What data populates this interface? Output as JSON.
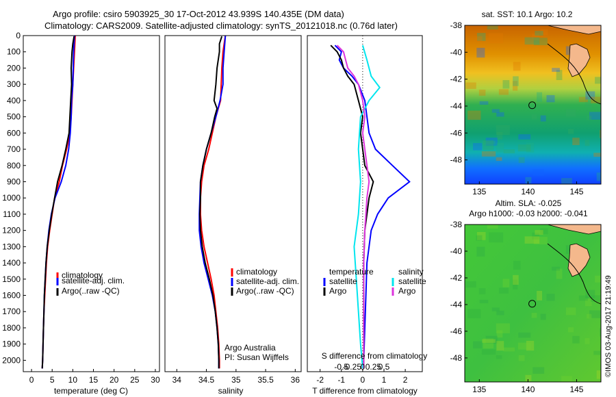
{
  "header": {
    "line1": "Argo profile: csiro 5903925_30 17-Oct-2012 43.939S 140.435E (DM data)",
    "line2": "Climatology: CARS2009. Satellite-adjusted climatology: synTS_20121018.nc (0.76d later)"
  },
  "colors": {
    "climatology": "#ff0000",
    "satellite": "#0000ff",
    "argo": "#000000",
    "sal_satellite": "#00e5ee",
    "sal_argo": "#dd33dd"
  },
  "chart_data": [
    {
      "type": "line",
      "xlabel": "temperature (deg C)",
      "ylabel": "",
      "xlim": [
        -2,
        31
      ],
      "ylim": [
        2070,
        0
      ],
      "xticks": [
        0,
        5,
        10,
        15,
        20,
        25,
        30
      ],
      "yticks": [
        0,
        100,
        200,
        300,
        400,
        500,
        600,
        700,
        800,
        900,
        1000,
        1100,
        1200,
        1300,
        1400,
        1500,
        1600,
        1700,
        1800,
        1900,
        2000
      ],
      "legend": [
        "climatology",
        "satellite-adj. clim.",
        "Argo(..raw -QC)"
      ],
      "series": [
        {
          "name": "climatology",
          "color": "#ff0000",
          "points": [
            [
              10.6,
              0
            ],
            [
              10.5,
              50
            ],
            [
              10.4,
              100
            ],
            [
              10.2,
              200
            ],
            [
              10.0,
              300
            ],
            [
              9.8,
              400
            ],
            [
              9.6,
              500
            ],
            [
              9.3,
              600
            ],
            [
              8.5,
              700
            ],
            [
              7.5,
              800
            ],
            [
              6.7,
              900
            ],
            [
              5.6,
              1000
            ],
            [
              5.0,
              1100
            ],
            [
              4.4,
              1200
            ],
            [
              3.9,
              1300
            ],
            [
              3.6,
              1400
            ],
            [
              3.4,
              1500
            ],
            [
              3.2,
              1600
            ],
            [
              3.0,
              1700
            ],
            [
              2.9,
              1800
            ],
            [
              2.8,
              1900
            ],
            [
              2.7,
              2000
            ],
            [
              2.6,
              2050
            ]
          ]
        },
        {
          "name": "satellite-adj. clim.",
          "color": "#0000ff",
          "points": [
            [
              10.4,
              0
            ],
            [
              10.3,
              50
            ],
            [
              10.2,
              100
            ],
            [
              10.1,
              200
            ],
            [
              10.0,
              300
            ],
            [
              9.7,
              400
            ],
            [
              9.6,
              500
            ],
            [
              9.4,
              600
            ],
            [
              9.0,
              700
            ],
            [
              8.3,
              800
            ],
            [
              7.2,
              900
            ],
            [
              5.7,
              1000
            ],
            [
              4.8,
              1100
            ],
            [
              4.2,
              1200
            ],
            [
              3.8,
              1300
            ],
            [
              3.5,
              1400
            ],
            [
              3.3,
              1500
            ],
            [
              3.1,
              1600
            ],
            [
              3.0,
              1700
            ],
            [
              2.9,
              1800
            ],
            [
              2.8,
              1900
            ],
            [
              2.7,
              2000
            ],
            [
              2.6,
              2050
            ]
          ]
        },
        {
          "name": "Argo(..raw -QC)",
          "color": "#000000",
          "points": [
            [
              10.3,
              5
            ],
            [
              10.0,
              50
            ],
            [
              9.8,
              100
            ],
            [
              9.6,
              200
            ],
            [
              9.7,
              300
            ],
            [
              9.5,
              400
            ],
            [
              9.3,
              500
            ],
            [
              9.1,
              600
            ],
            [
              8.3,
              700
            ],
            [
              7.4,
              800
            ],
            [
              6.3,
              900
            ],
            [
              5.6,
              1000
            ],
            [
              4.9,
              1100
            ],
            [
              4.3,
              1200
            ],
            [
              3.8,
              1300
            ],
            [
              3.5,
              1400
            ],
            [
              3.3,
              1500
            ],
            [
              3.1,
              1600
            ],
            [
              3.0,
              1700
            ],
            [
              2.9,
              1800
            ],
            [
              2.8,
              1900
            ],
            [
              2.7,
              2000
            ],
            [
              2.6,
              2050
            ]
          ]
        }
      ]
    },
    {
      "type": "line",
      "xlabel": "salinity",
      "ylabel": "",
      "xlim": [
        33.8,
        36.1
      ],
      "ylim": [
        2070,
        0
      ],
      "xticks": [
        34,
        34.5,
        35,
        35.5,
        36
      ],
      "xticklabels": [
        "34",
        "34.5",
        "35",
        "35.5",
        "36"
      ],
      "legend": [
        "climatology",
        "satellite-adj. clim.",
        "Argo(..raw -QC)"
      ],
      "annotation": [
        "Argo Australia",
        "PI: Susan Wijffels"
      ],
      "series": [
        {
          "name": "climatology",
          "color": "#ff0000",
          "points": [
            [
              34.82,
              0
            ],
            [
              34.8,
              50
            ],
            [
              34.78,
              100
            ],
            [
              34.76,
              200
            ],
            [
              34.75,
              300
            ],
            [
              34.74,
              400
            ],
            [
              34.66,
              500
            ],
            [
              34.6,
              600
            ],
            [
              34.54,
              700
            ],
            [
              34.46,
              800
            ],
            [
              34.42,
              900
            ],
            [
              34.4,
              1000
            ],
            [
              34.4,
              1100
            ],
            [
              34.42,
              1200
            ],
            [
              34.46,
              1300
            ],
            [
              34.52,
              1400
            ],
            [
              34.58,
              1500
            ],
            [
              34.63,
              1600
            ],
            [
              34.66,
              1700
            ],
            [
              34.69,
              1800
            ],
            [
              34.71,
              1900
            ],
            [
              34.72,
              2000
            ],
            [
              34.72,
              2050
            ]
          ]
        },
        {
          "name": "satellite-adj. clim.",
          "color": "#0000ff",
          "points": [
            [
              34.82,
              0
            ],
            [
              34.81,
              50
            ],
            [
              34.8,
              100
            ],
            [
              34.78,
              200
            ],
            [
              34.78,
              300
            ],
            [
              34.73,
              400
            ],
            [
              34.66,
              500
            ],
            [
              34.58,
              600
            ],
            [
              34.5,
              700
            ],
            [
              34.44,
              800
            ],
            [
              34.4,
              900
            ],
            [
              34.39,
              1000
            ],
            [
              34.38,
              1100
            ],
            [
              34.38,
              1200
            ],
            [
              34.41,
              1300
            ],
            [
              34.46,
              1400
            ],
            [
              34.53,
              1500
            ],
            [
              34.6,
              1600
            ],
            [
              34.65,
              1700
            ],
            [
              34.68,
              1800
            ],
            [
              34.7,
              1900
            ],
            [
              34.71,
              2000
            ],
            [
              34.71,
              2050
            ]
          ]
        },
        {
          "name": "Argo(..raw -QC)",
          "color": "#000000",
          "points": [
            [
              34.76,
              5
            ],
            [
              34.72,
              50
            ],
            [
              34.72,
              100
            ],
            [
              34.68,
              200
            ],
            [
              34.66,
              300
            ],
            [
              34.63,
              400
            ],
            [
              34.68,
              450
            ],
            [
              34.64,
              500
            ],
            [
              34.58,
              600
            ],
            [
              34.5,
              700
            ],
            [
              34.44,
              800
            ],
            [
              34.4,
              900
            ],
            [
              34.4,
              1000
            ],
            [
              34.39,
              1100
            ],
            [
              34.4,
              1200
            ],
            [
              34.43,
              1300
            ],
            [
              34.48,
              1400
            ],
            [
              34.55,
              1500
            ],
            [
              34.61,
              1600
            ],
            [
              34.65,
              1700
            ],
            [
              34.68,
              1800
            ],
            [
              34.7,
              1900
            ],
            [
              34.71,
              2000
            ],
            [
              34.71,
              2050
            ]
          ]
        }
      ]
    },
    {
      "type": "line",
      "xlabel": "T difference from climatology",
      "xlabel2": "S difference from climatology",
      "xlim": [
        -2.6,
        2.8
      ],
      "ylim": [
        2070,
        0
      ],
      "xticks": [
        -2,
        -1,
        0,
        1,
        2
      ],
      "xticklabels2": [
        "-0.5",
        "-0.25",
        "0",
        "0.25",
        "0.5"
      ],
      "legend_left": {
        "title": "temperature",
        "items": [
          "satellite",
          "Argo"
        ]
      },
      "legend_right": {
        "title": "salinity",
        "items": [
          "satellite",
          "Argo"
        ]
      },
      "series": [
        {
          "name": "satellite",
          "group": "temperature",
          "color": "#0000ff",
          "points": [
            [
              -1.3,
              60
            ],
            [
              -1.0,
              100
            ],
            [
              -1.1,
              150
            ],
            [
              -0.9,
              200
            ],
            [
              -0.5,
              250
            ],
            [
              -0.2,
              300
            ],
            [
              0.1,
              400
            ],
            [
              0.2,
              500
            ],
            [
              0.3,
              600
            ],
            [
              0.6,
              700
            ],
            [
              1.4,
              800
            ],
            [
              2.2,
              900
            ],
            [
              1.2,
              1000
            ],
            [
              0.7,
              1100
            ],
            [
              0.4,
              1200
            ],
            [
              0.3,
              1300
            ],
            [
              0.2,
              1400
            ],
            [
              0.15,
              1600
            ],
            [
              0.1,
              1800
            ],
            [
              0.05,
              2000
            ],
            [
              0.05,
              2050
            ]
          ]
        },
        {
          "name": "Argo",
          "group": "temperature",
          "color": "#000000",
          "points": [
            [
              -1.5,
              60
            ],
            [
              -1.2,
              100
            ],
            [
              -1.0,
              150
            ],
            [
              -0.9,
              200
            ],
            [
              -0.7,
              250
            ],
            [
              -0.4,
              300
            ],
            [
              -0.2,
              400
            ],
            [
              0.0,
              500
            ],
            [
              -0.1,
              600
            ],
            [
              0.0,
              700
            ],
            [
              0.1,
              800
            ],
            [
              0.5,
              900
            ],
            [
              0.3,
              1000
            ],
            [
              0.2,
              1100
            ],
            [
              0.1,
              1200
            ],
            [
              0.05,
              1400
            ],
            [
              0.05,
              1600
            ],
            [
              0.05,
              1800
            ],
            [
              0.05,
              2000
            ],
            [
              0.05,
              2050
            ]
          ]
        },
        {
          "name": "satellite",
          "group": "salinity",
          "color": "#00e5ee",
          "points": [
            [
              0.0,
              60
            ],
            [
              0.2,
              150
            ],
            [
              0.4,
              250
            ],
            [
              0.8,
              320
            ],
            [
              0.3,
              400
            ],
            [
              -0.1,
              500
            ],
            [
              -0.2,
              700
            ],
            [
              -0.1,
              900
            ],
            [
              -0.2,
              1100
            ],
            [
              -0.4,
              1300
            ],
            [
              -0.3,
              1500
            ],
            [
              -0.2,
              1700
            ],
            [
              -0.1,
              1900
            ],
            [
              0.0,
              2050
            ]
          ]
        },
        {
          "name": "Argo",
          "group": "salinity",
          "color": "#dd33dd",
          "points": [
            [
              -1.2,
              60
            ],
            [
              -0.9,
              100
            ],
            [
              -0.8,
              150
            ],
            [
              -0.7,
              200
            ],
            [
              -0.4,
              250
            ],
            [
              -0.2,
              300
            ],
            [
              0.0,
              400
            ],
            [
              0.1,
              500
            ],
            [
              0.0,
              600
            ],
            [
              0.1,
              700
            ],
            [
              0.2,
              800
            ],
            [
              0.3,
              900
            ],
            [
              0.2,
              1000
            ],
            [
              0.15,
              1100
            ],
            [
              0.1,
              1200
            ],
            [
              0.05,
              1400
            ],
            [
              0.05,
              1600
            ],
            [
              0.05,
              1800
            ],
            [
              0.05,
              2000
            ],
            [
              0.05,
              2050
            ]
          ]
        }
      ]
    },
    {
      "type": "heatmap",
      "title": "sat. SST: 10.1  Argo: 10.2",
      "xlim": [
        133.5,
        147.5
      ],
      "ylim": [
        -49.8,
        -38
      ],
      "xticks": [
        135,
        140,
        145
      ],
      "yticks": [
        -48,
        -46,
        -44,
        -42,
        -40,
        -38
      ],
      "marker": [
        140.435,
        -43.939
      ]
    },
    {
      "type": "heatmap",
      "title": "Altim. SLA: -0.025",
      "subtitle": "Argo h1000: -0.03  h2000: -0.041",
      "xlim": [
        133.5,
        147.5
      ],
      "ylim": [
        -49.8,
        -38
      ],
      "xticks": [
        135,
        140,
        145
      ],
      "yticks": [
        -48,
        -46,
        -44,
        -42,
        -40,
        -38
      ],
      "marker": [
        140.435,
        -43.939
      ]
    }
  ],
  "watermark": "©IMOS 03-Aug-2017 21:19:49"
}
